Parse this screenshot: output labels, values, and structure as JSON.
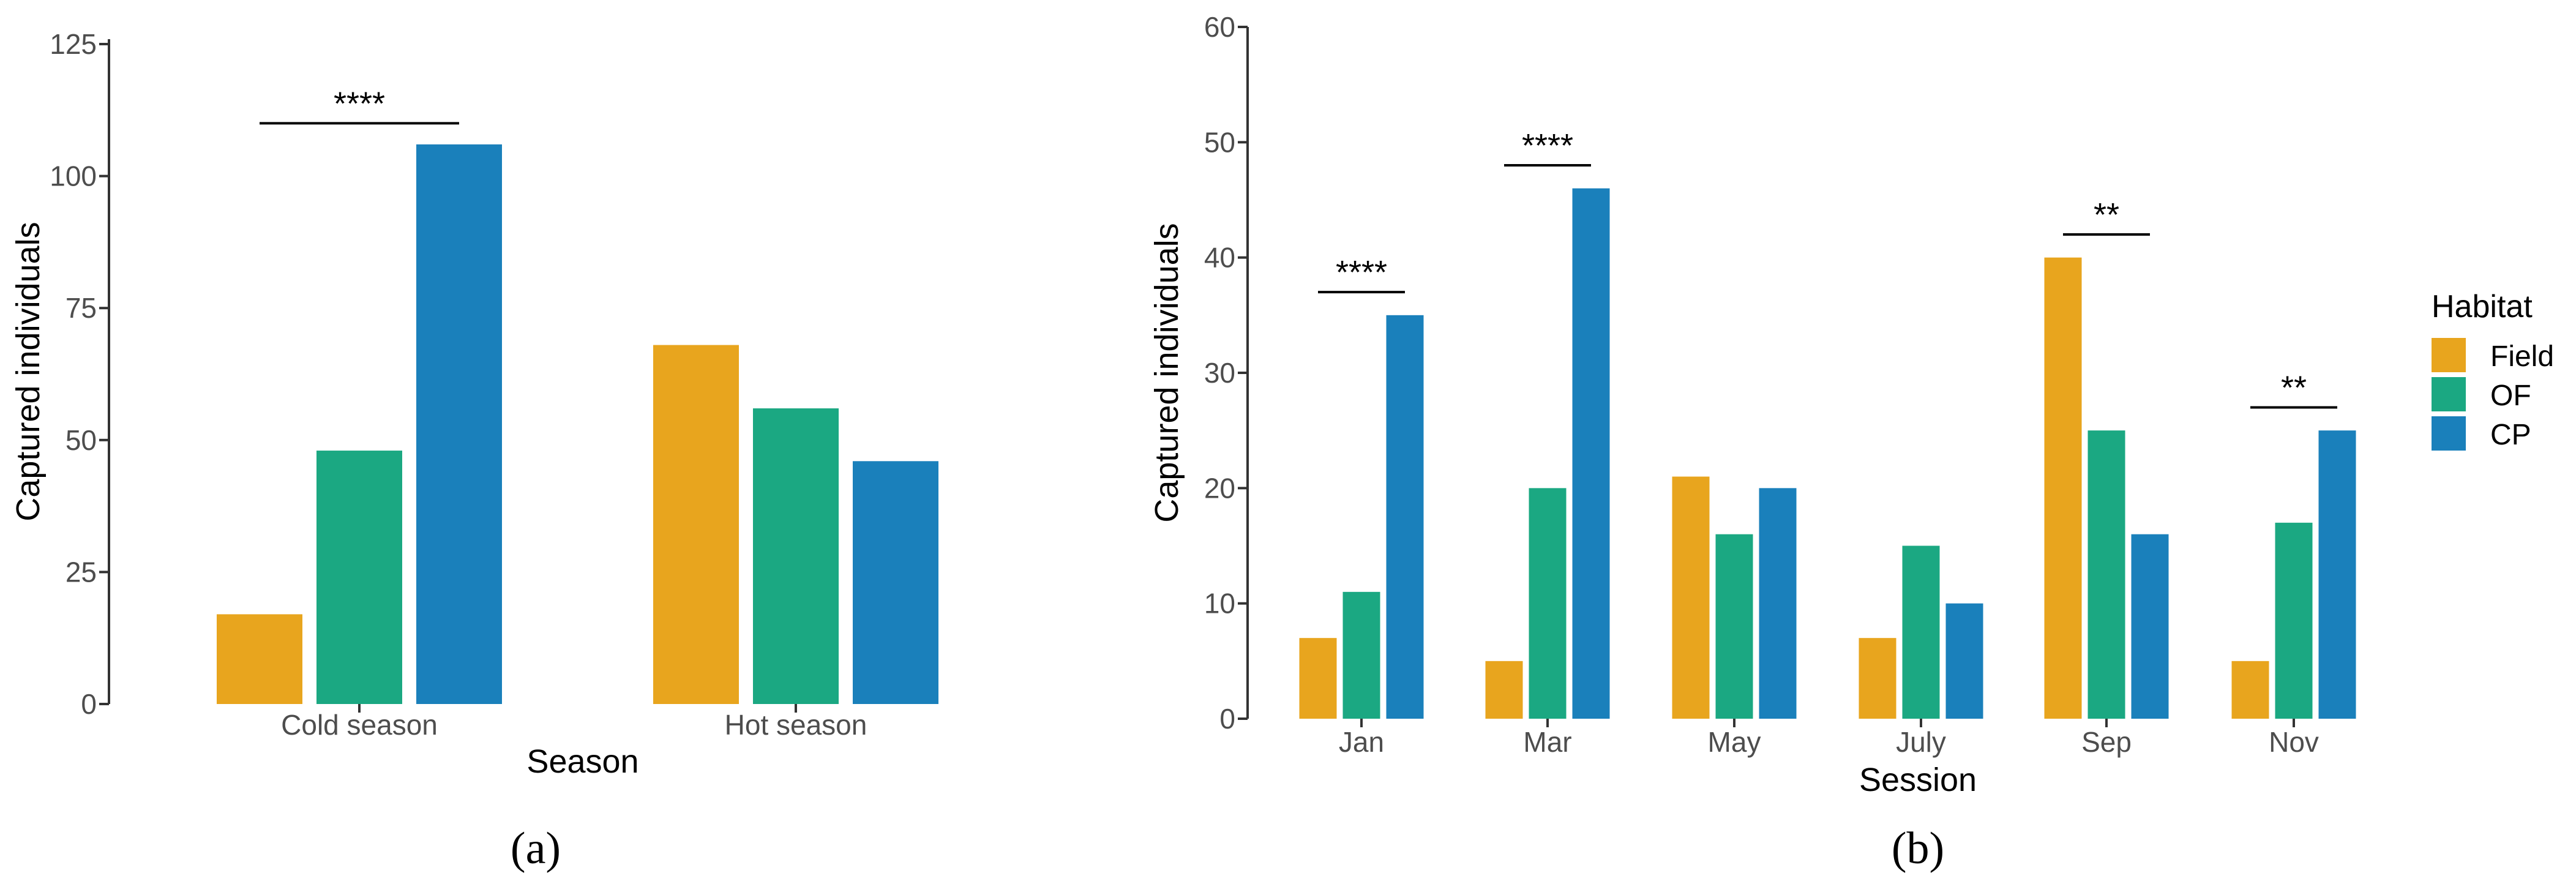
{
  "figure": {
    "panel_labels": {
      "a": "(a)",
      "b": "(b)"
    }
  },
  "chart_data": [
    {
      "type": "bar",
      "panel": "(a)",
      "xlabel": "Season",
      "ylabel": "Captured individuals",
      "categories": [
        "Cold season",
        "Hot season"
      ],
      "ylim": [
        0,
        125
      ],
      "yticks": [
        0,
        25,
        50,
        75,
        100,
        125
      ],
      "grid": false,
      "series": [
        {
          "name": "Field",
          "color": "#E8A51E",
          "values": [
            17,
            68
          ]
        },
        {
          "name": "OF",
          "color": "#1BA882",
          "values": [
            48,
            56
          ]
        },
        {
          "name": "CP",
          "color": "#1A80BB",
          "values": [
            106,
            46
          ]
        }
      ],
      "significance": [
        {
          "category": "Cold season",
          "label": "****",
          "y": 110
        }
      ]
    },
    {
      "type": "bar",
      "panel": "(b)",
      "xlabel": "Session",
      "ylabel": "Captured individuals",
      "categories": [
        "Jan",
        "Mar",
        "May",
        "July",
        "Sep",
        "Nov"
      ],
      "ylim": [
        0,
        60
      ],
      "yticks": [
        0,
        10,
        20,
        30,
        40,
        50,
        60
      ],
      "grid": false,
      "series": [
        {
          "name": "Field",
          "color": "#E8A51E",
          "values": [
            7,
            5,
            21,
            7,
            40,
            5
          ]
        },
        {
          "name": "OF",
          "color": "#1BA882",
          "values": [
            11,
            20,
            16,
            15,
            25,
            17
          ]
        },
        {
          "name": "CP",
          "color": "#1A80BB",
          "values": [
            35,
            46,
            20,
            10,
            16,
            25
          ]
        }
      ],
      "significance": [
        {
          "category": "Jan",
          "label": "****",
          "y": 37
        },
        {
          "category": "Mar",
          "label": "****",
          "y": 48
        },
        {
          "category": "Sep",
          "label": "**",
          "y": 42
        },
        {
          "category": "Nov",
          "label": "**",
          "y": 27
        }
      ],
      "legend": {
        "title": "Habitat",
        "position": "right",
        "items": [
          "Field",
          "OF",
          "CP"
        ]
      }
    }
  ]
}
